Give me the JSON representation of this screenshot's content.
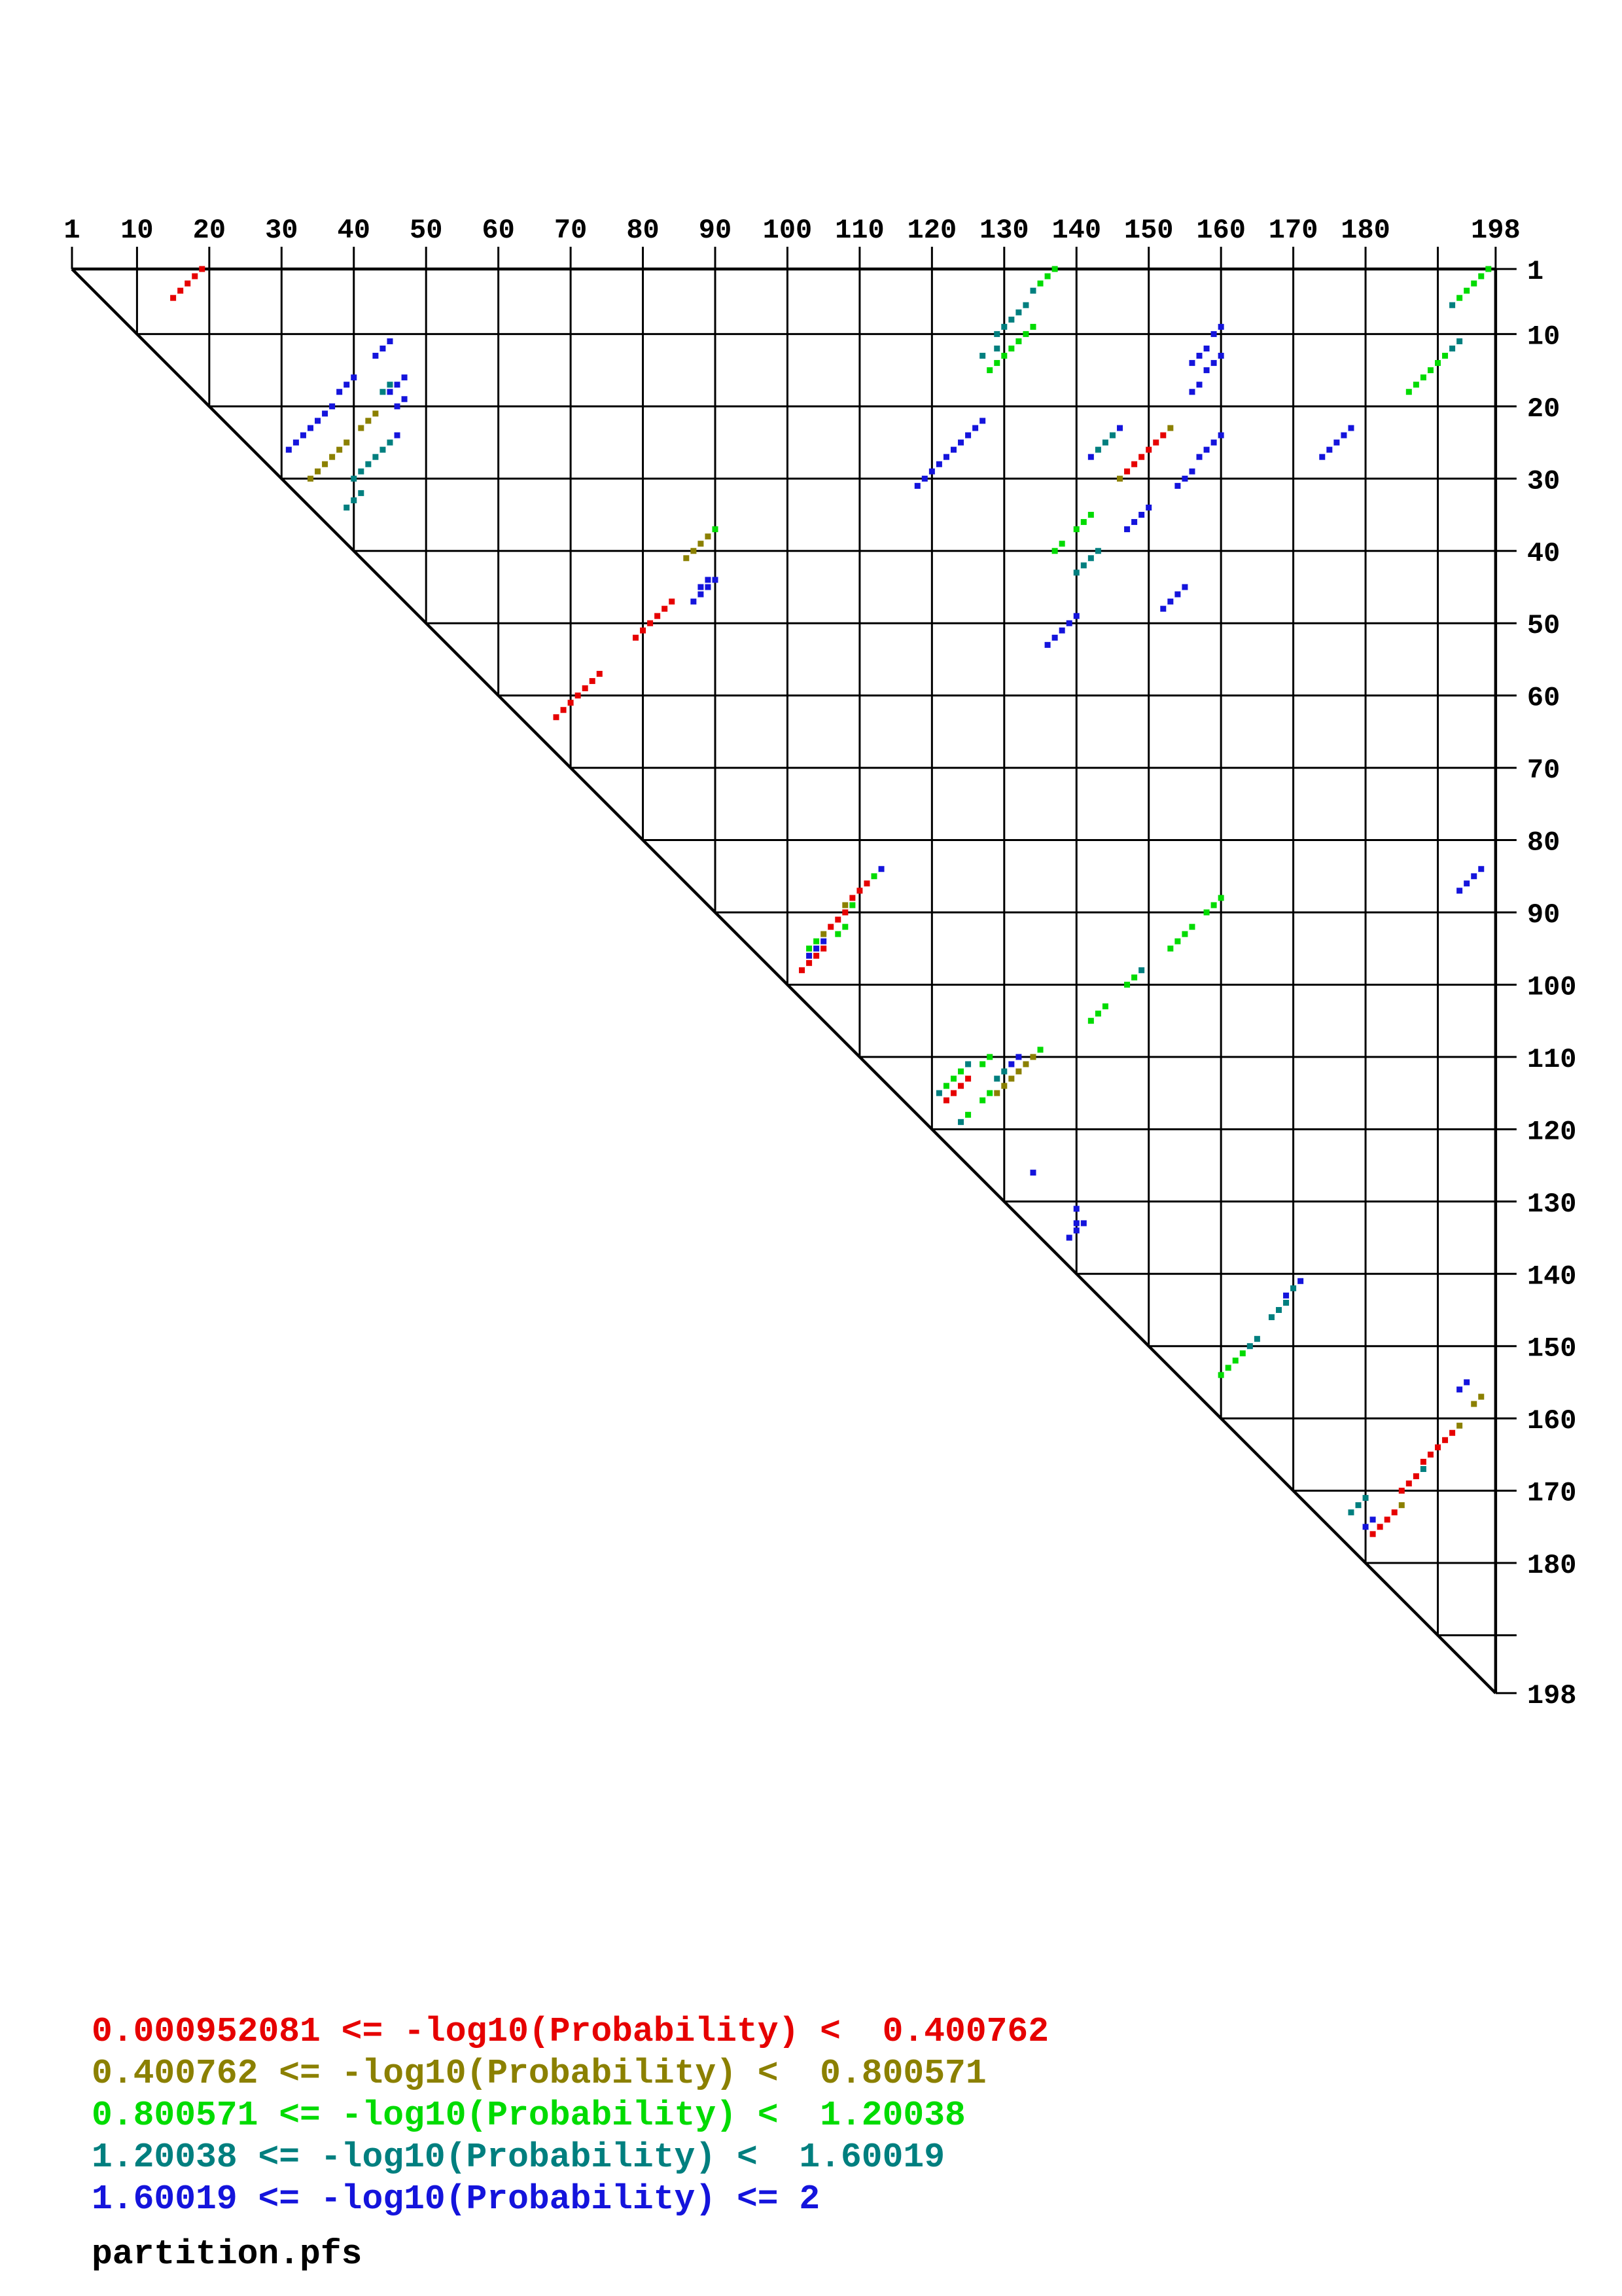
{
  "chart_data": {
    "type": "scatter",
    "title": "",
    "xlabel": "",
    "ylabel": "",
    "x_range": [
      1,
      198
    ],
    "y_range": [
      1,
      198
    ],
    "grid": true,
    "legend_position": "bottom-left",
    "footer": "partition.pfs",
    "x_ticks": [
      {
        "v": 1,
        "label": "1"
      },
      {
        "v": 10,
        "label": "10"
      },
      {
        "v": 20,
        "label": "20"
      },
      {
        "v": 30,
        "label": "30"
      },
      {
        "v": 40,
        "label": "40"
      },
      {
        "v": 50,
        "label": "50"
      },
      {
        "v": 60,
        "label": "60"
      },
      {
        "v": 70,
        "label": "70"
      },
      {
        "v": 80,
        "label": "80"
      },
      {
        "v": 90,
        "label": "90"
      },
      {
        "v": 100,
        "label": "100"
      },
      {
        "v": 110,
        "label": "110"
      },
      {
        "v": 120,
        "label": "120"
      },
      {
        "v": 130,
        "label": "130"
      },
      {
        "v": 140,
        "label": "140"
      },
      {
        "v": 150,
        "label": "150"
      },
      {
        "v": 160,
        "label": "160"
      },
      {
        "v": 170,
        "label": "170"
      },
      {
        "v": 180,
        "label": "180"
      },
      {
        "v": 190,
        "label": ""
      },
      {
        "v": 198,
        "label": "198"
      }
    ],
    "y_ticks": [
      {
        "v": 1,
        "label": "1"
      },
      {
        "v": 10,
        "label": "10"
      },
      {
        "v": 20,
        "label": "20"
      },
      {
        "v": 30,
        "label": "30"
      },
      {
        "v": 40,
        "label": "40"
      },
      {
        "v": 50,
        "label": "50"
      },
      {
        "v": 60,
        "label": "60"
      },
      {
        "v": 70,
        "label": "70"
      },
      {
        "v": 80,
        "label": "80"
      },
      {
        "v": 90,
        "label": "90"
      },
      {
        "v": 100,
        "label": "100"
      },
      {
        "v": 110,
        "label": "110"
      },
      {
        "v": 120,
        "label": "120"
      },
      {
        "v": 130,
        "label": "130"
      },
      {
        "v": 140,
        "label": "140"
      },
      {
        "v": 150,
        "label": "150"
      },
      {
        "v": 160,
        "label": "160"
      },
      {
        "v": 170,
        "label": "170"
      },
      {
        "v": 180,
        "label": "180"
      },
      {
        "v": 190,
        "label": ""
      },
      {
        "v": 198,
        "label": "198"
      }
    ],
    "classes": [
      {
        "name": "bin-1",
        "color": "#e60000",
        "legend": "0.000952081 <= -log10(Probability) <  0.400762"
      },
      {
        "name": "bin-2",
        "color": "#8b8000",
        "legend": "0.400762 <= -log10(Probability) <  0.800571"
      },
      {
        "name": "bin-3",
        "color": "#00db00",
        "legend": "0.800571 <= -log10(Probability) <  1.20038"
      },
      {
        "name": "bin-4",
        "color": "#007f7f",
        "legend": "1.20038 <= -log10(Probability) <  1.60019"
      },
      {
        "name": "bin-5",
        "color": "#1414dc",
        "legend": "1.60019 <= -log10(Probability) <= 2"
      }
    ],
    "runs_format": "[x_start, y_start, n_dots, class_index] ; dots at (x_start-k, y_start+k) for k in 0..n-1",
    "runs": [
      [
        19,
        1,
        5,
        0
      ],
      [
        45,
        11,
        3,
        4
      ],
      [
        40,
        16,
        3,
        4
      ],
      [
        37,
        20,
        7,
        4
      ],
      [
        47,
        16,
        1,
        4
      ],
      [
        46,
        17,
        1,
        4
      ],
      [
        45,
        17,
        1,
        3
      ],
      [
        45,
        18,
        1,
        4
      ],
      [
        44,
        18,
        1,
        3
      ],
      [
        47,
        19,
        2,
        4
      ],
      [
        43,
        21,
        3,
        1
      ],
      [
        46,
        24,
        1,
        4
      ],
      [
        39,
        25,
        6,
        1
      ],
      [
        45,
        25,
        6,
        3
      ],
      [
        41,
        32,
        3,
        3
      ],
      [
        137,
        1,
        3,
        2
      ],
      [
        134,
        4,
        1,
        3
      ],
      [
        133,
        6,
        5,
        3
      ],
      [
        134,
        9,
        7,
        2
      ],
      [
        129,
        12,
        1,
        3
      ],
      [
        127,
        13,
        1,
        3
      ],
      [
        127,
        22,
        10,
        4
      ],
      [
        146,
        23,
        1,
        4
      ],
      [
        145,
        24,
        3,
        3
      ],
      [
        142,
        27,
        1,
        4
      ],
      [
        153,
        23,
        1,
        1
      ],
      [
        152,
        24,
        6,
        0
      ],
      [
        146,
        30,
        1,
        1
      ],
      [
        160,
        9,
        2,
        4
      ],
      [
        158,
        12,
        3,
        4
      ],
      [
        160,
        13,
        3,
        4
      ],
      [
        157,
        17,
        2,
        4
      ],
      [
        160,
        24,
        4,
        4
      ],
      [
        156,
        29,
        3,
        4
      ],
      [
        178,
        23,
        5,
        4
      ],
      [
        197,
        1,
        5,
        2
      ],
      [
        192,
        6,
        1,
        3
      ],
      [
        193,
        11,
        2,
        3
      ],
      [
        191,
        13,
        6,
        2
      ],
      [
        150,
        34,
        4,
        4
      ],
      [
        142,
        35,
        3,
        2
      ],
      [
        138,
        39,
        2,
        2
      ],
      [
        143,
        40,
        4,
        3
      ],
      [
        155,
        45,
        4,
        4
      ],
      [
        140,
        49,
        5,
        4
      ],
      [
        90,
        37,
        1,
        2
      ],
      [
        89,
        38,
        4,
        1
      ],
      [
        90,
        44,
        4,
        4
      ],
      [
        89,
        44,
        1,
        4
      ],
      [
        88,
        45,
        1,
        4
      ],
      [
        84,
        47,
        6,
        0
      ],
      [
        74,
        57,
        7,
        0
      ],
      [
        113,
        84,
        1,
        4
      ],
      [
        112,
        85,
        1,
        2
      ],
      [
        111,
        86,
        3,
        0
      ],
      [
        109,
        89,
        1,
        2
      ],
      [
        108,
        89,
        1,
        1
      ],
      [
        108,
        90,
        3,
        0
      ],
      [
        108,
        92,
        2,
        2
      ],
      [
        105,
        93,
        1,
        1
      ],
      [
        104,
        94,
        2,
        2
      ],
      [
        105,
        94,
        3,
        4
      ],
      [
        105,
        95,
        4,
        0
      ],
      [
        196,
        84,
        4,
        4
      ],
      [
        160,
        88,
        3,
        2
      ],
      [
        156,
        92,
        4,
        2
      ],
      [
        149,
        98,
        1,
        3
      ],
      [
        148,
        99,
        2,
        2
      ],
      [
        144,
        103,
        3,
        2
      ],
      [
        135,
        109,
        1,
        2
      ],
      [
        134,
        110,
        5,
        1
      ],
      [
        132,
        110,
        2,
        4
      ],
      [
        128,
        110,
        2,
        2
      ],
      [
        125,
        111,
        1,
        3
      ],
      [
        130,
        112,
        2,
        3
      ],
      [
        124,
        112,
        1,
        2
      ],
      [
        125,
        113,
        3,
        0
      ],
      [
        123,
        113,
        2,
        2
      ],
      [
        129,
        115,
        1,
        1
      ],
      [
        128,
        115,
        2,
        2
      ],
      [
        122,
        116,
        1,
        0
      ],
      [
        121,
        115,
        1,
        3
      ],
      [
        125,
        118,
        1,
        2
      ],
      [
        124,
        119,
        1,
        3
      ],
      [
        134,
        126,
        1,
        4
      ],
      [
        140,
        131,
        1,
        4
      ],
      [
        140,
        133,
        1,
        4
      ],
      [
        141,
        133,
        3,
        4
      ],
      [
        171,
        141,
        1,
        4
      ],
      [
        170,
        142,
        1,
        3
      ],
      [
        169,
        143,
        1,
        4
      ],
      [
        169,
        144,
        3,
        3
      ],
      [
        165,
        149,
        2,
        3
      ],
      [
        163,
        151,
        4,
        2
      ],
      [
        194,
        155,
        2,
        4
      ],
      [
        196,
        157,
        2,
        1
      ],
      [
        193,
        161,
        1,
        1
      ],
      [
        192,
        162,
        5,
        0
      ],
      [
        188,
        167,
        1,
        3
      ],
      [
        187,
        168,
        3,
        0
      ],
      [
        185,
        172,
        1,
        1
      ],
      [
        184,
        173,
        4,
        0
      ],
      [
        180,
        171,
        3,
        3
      ],
      [
        181,
        174,
        2,
        4
      ]
    ]
  }
}
